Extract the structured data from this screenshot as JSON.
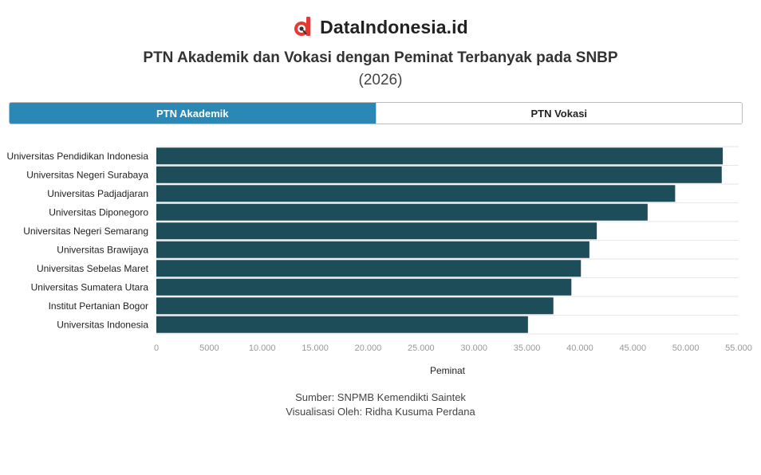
{
  "brand": {
    "name": "DataIndonesia.id",
    "logo_icon": "dataindonesia-logo-icon",
    "logo_color": "#e53935"
  },
  "header": {
    "title": "PTN Akademik dan Vokasi dengan Peminat Terbanyak pada SNBP",
    "subtitle": "(2026)"
  },
  "tabs": [
    {
      "label": "PTN Akademik",
      "active": true
    },
    {
      "label": "PTN Vokasi",
      "active": false
    }
  ],
  "colors": {
    "bar": "#1e4d5a",
    "tab_active": "#2b88b4",
    "grid": "#e6e6e6",
    "tick": "#999999"
  },
  "chart_data": {
    "type": "bar",
    "orientation": "horizontal",
    "categories": [
      "Universitas Pendidikan Indonesia",
      "Universitas Negeri Surabaya",
      "Universitas Padjadjaran",
      "Universitas Diponegoro",
      "Universitas Negeri Semarang",
      "Universitas Brawijaya",
      "Universitas Sebelas Maret",
      "Universitas Sumatera Utara",
      "Institut Pertanian Bogor",
      "Universitas Indonesia"
    ],
    "values": [
      53500,
      53400,
      49000,
      46400,
      41600,
      40900,
      40100,
      39200,
      37500,
      35100
    ],
    "xlabel": "Peminat",
    "xlim": [
      0,
      55000
    ],
    "xticks": [
      0,
      5000,
      10000,
      15000,
      20000,
      25000,
      30000,
      35000,
      40000,
      45000,
      50000,
      55000
    ],
    "xtick_labels": [
      "0",
      "5000",
      "10.000",
      "15.000",
      "20.000",
      "25.000",
      "30.000",
      "35.000",
      "40.000",
      "45.000",
      "50.000",
      "55.000"
    ],
    "grid": true
  },
  "footer": {
    "source": "Sumber: SNPMB Kemendikti Saintek",
    "credit": "Visualisasi Oleh: Ridha Kusuma Perdana"
  }
}
